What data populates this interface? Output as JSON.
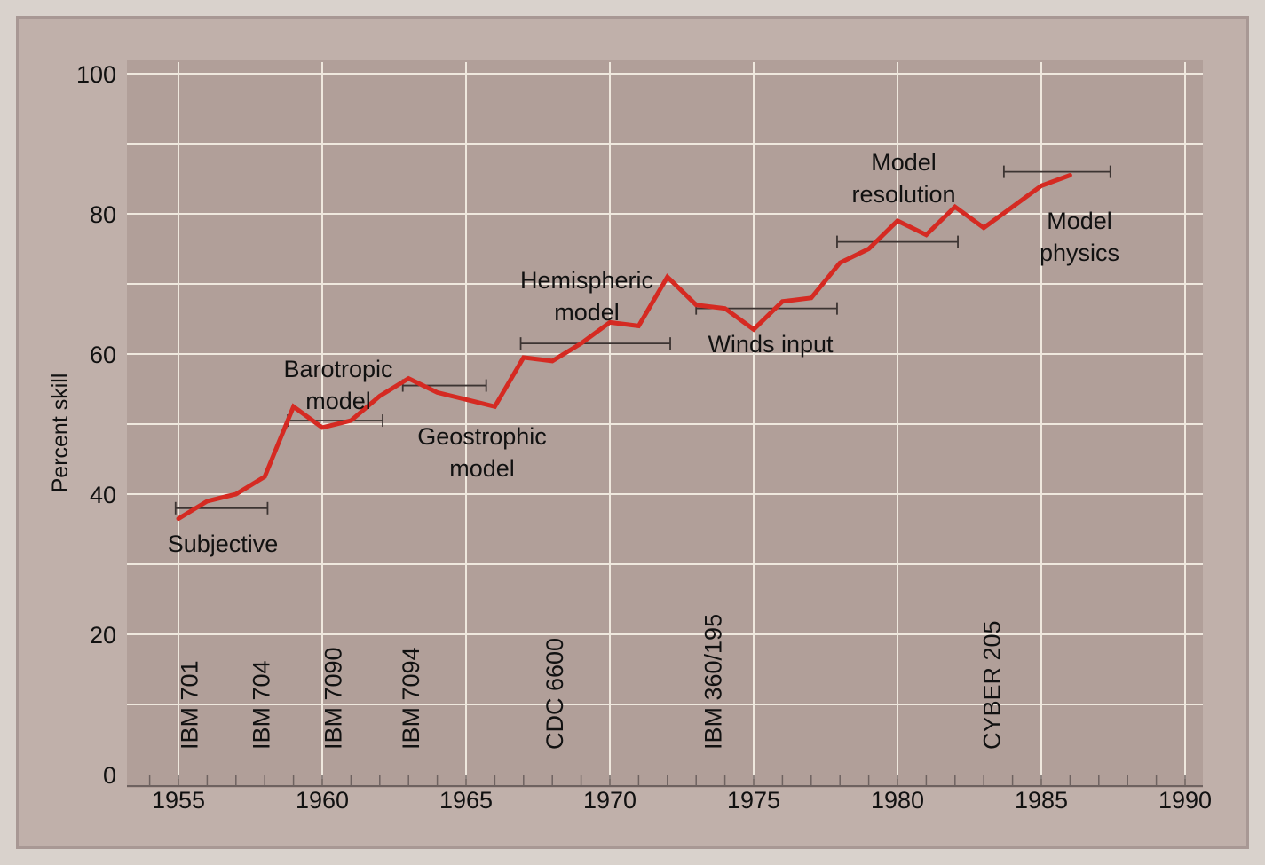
{
  "chart_data": {
    "type": "line",
    "title": "",
    "xlabel": "",
    "ylabel": "Percent skill",
    "xlim": [
      1955,
      1990
    ],
    "ylim": [
      0,
      100
    ],
    "grid": true,
    "x_ticks": [
      1955,
      1960,
      1965,
      1970,
      1975,
      1980,
      1985,
      1990
    ],
    "y_ticks": [
      0,
      20,
      40,
      60,
      80,
      100
    ],
    "series": [
      {
        "name": "",
        "color": "#d52a22",
        "x": [
          1955,
          1956,
          1957,
          1958,
          1959,
          1960,
          1961,
          1962,
          1963,
          1964,
          1965,
          1966,
          1967,
          1968,
          1969,
          1970,
          1971,
          1972,
          1973,
          1974,
          1975,
          1976,
          1977,
          1978,
          1979,
          1980,
          1981,
          1982,
          1983,
          1984,
          1985,
          1986
        ],
        "y": [
          36.5,
          39,
          40,
          42.5,
          52.5,
          49.5,
          50.5,
          54,
          56.5,
          54.5,
          53.5,
          52.5,
          59.5,
          59,
          61.5,
          64.5,
          64,
          71,
          67,
          66.5,
          63.5,
          67.5,
          68,
          73,
          75,
          79,
          77,
          81,
          78,
          81,
          84,
          85.5
        ]
      }
    ],
    "eras": [
      {
        "label_lines": [
          "Subjective"
        ],
        "start": 1954.9,
        "end": 1958.1,
        "y": 38
      },
      {
        "label_lines": [
          "Barotropic",
          "model"
        ],
        "start": 1958.8,
        "end": 1962.1,
        "y": 50.5
      },
      {
        "label_lines": [
          "Geostrophic",
          "model"
        ],
        "start": 1962.8,
        "end": 1965.7,
        "y": 55.5
      },
      {
        "label_lines": [
          "Hemispheric",
          "model"
        ],
        "start": 1966.9,
        "end": 1972.1,
        "y": 61.5
      },
      {
        "label_lines": [
          "Winds input"
        ],
        "start": 1973.0,
        "end": 1977.9,
        "y": 66.5
      },
      {
        "label_lines": [
          "Model",
          "resolution"
        ],
        "start": 1977.9,
        "end": 1982.1,
        "y": 76
      },
      {
        "label_lines": [
          "Model",
          "physics"
        ],
        "start": 1983.7,
        "end": 1987.4,
        "y": 86
      }
    ],
    "computers": [
      {
        "label": "IBM 701",
        "x": 1955.3
      },
      {
        "label": "IBM 704",
        "x": 1957.8
      },
      {
        "label": "IBM 7090",
        "x": 1960.3
      },
      {
        "label": "IBM 7094",
        "x": 1963.0
      },
      {
        "label": "CDC 6600",
        "x": 1968.0
      },
      {
        "label": "IBM 360/195",
        "x": 1973.5
      },
      {
        "label": "CYBER 205",
        "x": 1983.2
      }
    ]
  }
}
